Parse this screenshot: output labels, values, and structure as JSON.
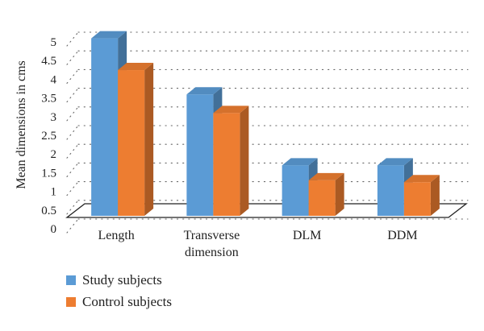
{
  "chart_data": {
    "type": "bar",
    "style": "3d-clustered-column",
    "categories": [
      "Length",
      "Transverse dimension",
      "DLM",
      "DDM"
    ],
    "category_lines": [
      [
        "Length"
      ],
      [
        "Transverse",
        "dimension"
      ],
      [
        "DLM"
      ],
      [
        "DDM"
      ]
    ],
    "series": [
      {
        "name": "Study subjects",
        "values": [
          4.75,
          3.25,
          1.35,
          1.35
        ],
        "color": "#5b9bd5"
      },
      {
        "name": "Control subjects",
        "values": [
          3.9,
          2.75,
          0.95,
          0.9
        ],
        "color": "#ed7d31"
      }
    ],
    "title": "",
    "xlabel": "",
    "ylabel": "Mean dimensions in cms",
    "ylim": [
      0,
      5
    ],
    "yticks": [
      "0",
      "0.5",
      "1",
      "1.5",
      "2",
      "2.5",
      "3",
      "3.5",
      "4",
      "4.5",
      "5"
    ],
    "grid": "dotted horizontal",
    "legend": "bottom-left"
  }
}
